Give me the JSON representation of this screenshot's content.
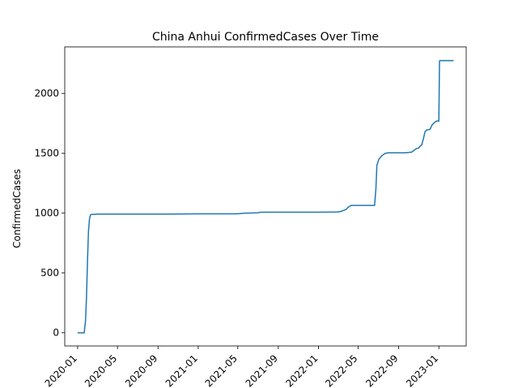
{
  "chart_data": {
    "type": "line",
    "title": "China Anhui ConfirmedCases Over Time",
    "xlabel": "",
    "ylabel": "ConfirmedCases",
    "x_ticks": [
      "2020-01",
      "2020-05",
      "2020-09",
      "2021-01",
      "2021-05",
      "2021-09",
      "2022-01",
      "2022-05",
      "2022-09",
      "2023-01"
    ],
    "y_ticks": [
      0,
      500,
      1000,
      1500,
      2000
    ],
    "xlim": [
      "2019-11-23",
      "2023-03-25"
    ],
    "ylim": [
      -110,
      2390
    ],
    "grid": false,
    "line_color": "#1f77b4",
    "series": [
      {
        "x": [
          "2020-01-01",
          "2020-01-21",
          "2020-01-25",
          "2020-01-28",
          "2020-01-31",
          "2020-02-03",
          "2020-02-06",
          "2020-02-09",
          "2020-02-12",
          "2020-02-16",
          "2020-02-21",
          "2020-03-01",
          "2020-06-01",
          "2020-10-01",
          "2021-01-01",
          "2021-05-01",
          "2021-05-20",
          "2021-06-30",
          "2021-07-10",
          "2022-01-01",
          "2022-02-28",
          "2022-03-10",
          "2022-03-25",
          "2022-04-01",
          "2022-04-10",
          "2022-06-20",
          "2022-06-24",
          "2022-06-27",
          "2022-07-03",
          "2022-07-12",
          "2022-07-22",
          "2022-08-01",
          "2022-09-20",
          "2022-10-10",
          "2022-10-15",
          "2022-10-25",
          "2022-11-01",
          "2022-11-05",
          "2022-11-10",
          "2022-11-15",
          "2022-11-20",
          "2022-11-25",
          "2022-12-05",
          "2022-12-12",
          "2022-12-20",
          "2022-12-25",
          "2023-01-01",
          "2023-01-03",
          "2023-01-04",
          "2023-02-15"
        ],
        "y": [
          0,
          0,
          100,
          300,
          600,
          850,
          950,
          985,
          990,
          990,
          990,
          992,
          992,
          992,
          995,
          995,
          1000,
          1003,
          1008,
          1008,
          1010,
          1015,
          1030,
          1050,
          1065,
          1065,
          1200,
          1400,
          1450,
          1480,
          1500,
          1505,
          1505,
          1510,
          1520,
          1540,
          1545,
          1560,
          1570,
          1620,
          1680,
          1695,
          1700,
          1740,
          1760,
          1770,
          1770,
          2270,
          2275,
          2275
        ]
      }
    ]
  }
}
